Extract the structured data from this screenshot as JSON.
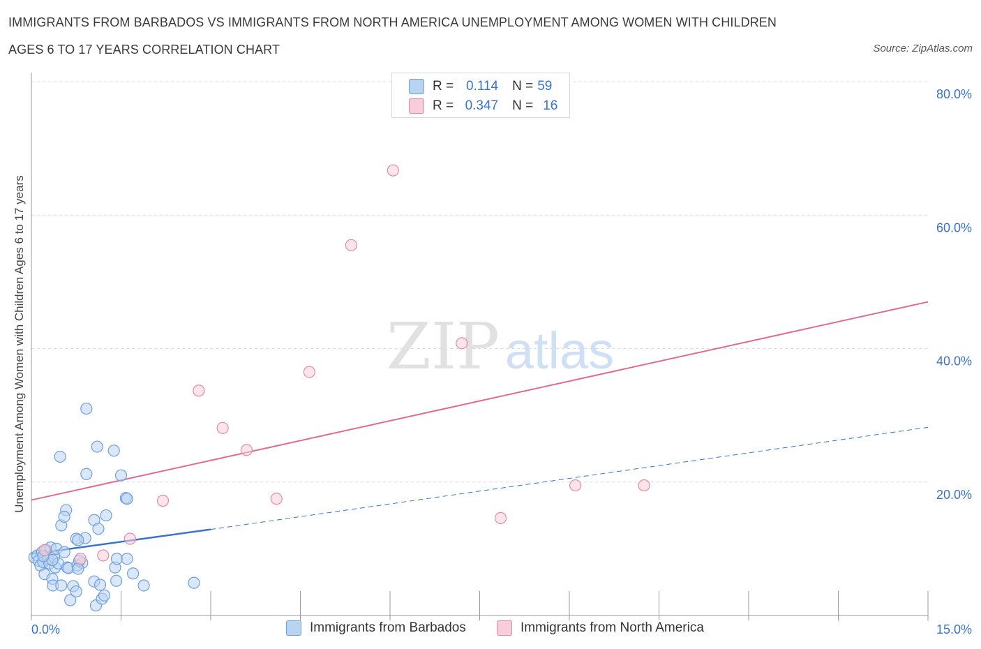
{
  "header": {
    "title_line1": "IMMIGRANTS FROM BARBADOS VS IMMIGRANTS FROM NORTH AMERICA UNEMPLOYMENT AMONG WOMEN WITH CHILDREN",
    "title_line2": "AGES 6 TO 17 YEARS CORRELATION CHART",
    "source": "Source: ZipAtlas.com"
  },
  "legend": {
    "r_label": "R =",
    "n_label": "N =",
    "series1": {
      "r": "0.114",
      "n": "59"
    },
    "series2": {
      "r": "0.347",
      "n": "16"
    }
  },
  "bottom_legend": {
    "series1": "Immigrants from Barbados",
    "series2": "Immigrants from North America"
  },
  "watermark": {
    "zip": "ZIP",
    "atlas": "atlas"
  },
  "chart_data": {
    "type": "scatter",
    "title": "IMMIGRANTS FROM BARBADOS VS IMMIGRANTS FROM NORTH AMERICA UNEMPLOYMENT AMONG WOMEN WITH CHILDREN AGES 6 TO 17 YEARS CORRELATION CHART",
    "xlabel": "",
    "ylabel": "Unemployment Among Women with Children Ages 6 to 17 years",
    "xlim": [
      0,
      15
    ],
    "ylim": [
      0,
      80
    ],
    "x_tick_labels": [
      {
        "value": 0,
        "label": "0.0%"
      },
      {
        "value": 15,
        "label": "15.0%"
      }
    ],
    "y_tick_labels": [
      {
        "value": 20,
        "label": "20.0%"
      },
      {
        "value": 40,
        "label": "40.0%"
      },
      {
        "value": 60,
        "label": "60.0%"
      },
      {
        "value": 80,
        "label": "80.0%"
      }
    ],
    "colors": {
      "series1_fill": "#b9d3f3",
      "series1_stroke": "#6f9fdb",
      "series1_line": "#3a73c9",
      "series2_fill": "#f7cdd9",
      "series2_stroke": "#e58aa6",
      "series2_line": "#e06b92"
    },
    "series": [
      {
        "name": "Immigrants from Barbados",
        "R": 0.114,
        "N": 59,
        "trend": {
          "x0": 0,
          "y0": 9.2,
          "x1": 3.0,
          "y1": 12.9,
          "dashed_to_x": 15,
          "dashed_to_y": 28.2
        },
        "points": [
          [
            0.05,
            8.7
          ],
          [
            0.1,
            9.0
          ],
          [
            0.12,
            8.2
          ],
          [
            0.15,
            7.5
          ],
          [
            0.18,
            9.5
          ],
          [
            0.2,
            8.0
          ],
          [
            0.22,
            6.2
          ],
          [
            0.25,
            9.8
          ],
          [
            0.28,
            8.5
          ],
          [
            0.3,
            7.8
          ],
          [
            0.32,
            10.2
          ],
          [
            0.35,
            5.5
          ],
          [
            0.36,
            4.5
          ],
          [
            0.38,
            8.8
          ],
          [
            0.4,
            7.2
          ],
          [
            0.42,
            10.0
          ],
          [
            0.45,
            7.8
          ],
          [
            0.35,
            8.3
          ],
          [
            0.2,
            8.9
          ],
          [
            0.5,
            4.5
          ],
          [
            0.55,
            9.5
          ],
          [
            0.58,
            15.8
          ],
          [
            0.6,
            7.2
          ],
          [
            0.65,
            2.3
          ],
          [
            0.7,
            4.4
          ],
          [
            0.75,
            3.6
          ],
          [
            0.75,
            11.5
          ],
          [
            0.62,
            7.1
          ],
          [
            0.5,
            13.5
          ],
          [
            0.55,
            14.8
          ],
          [
            0.48,
            23.8
          ],
          [
            0.77,
            7.5
          ],
          [
            0.85,
            7.9
          ],
          [
            0.9,
            11.6
          ],
          [
            0.92,
            21.2
          ],
          [
            0.8,
            8.2
          ],
          [
            0.78,
            11.3
          ],
          [
            0.78,
            7.0
          ],
          [
            0.92,
            31.0
          ],
          [
            1.05,
            14.3
          ],
          [
            1.05,
            5.1
          ],
          [
            1.08,
            1.5
          ],
          [
            1.1,
            25.3
          ],
          [
            1.12,
            13.0
          ],
          [
            1.15,
            4.6
          ],
          [
            1.18,
            2.5
          ],
          [
            1.22,
            3.0
          ],
          [
            1.25,
            15.0
          ],
          [
            1.38,
            24.7
          ],
          [
            1.4,
            7.2
          ],
          [
            1.42,
            5.2
          ],
          [
            1.43,
            8.5
          ],
          [
            1.5,
            21.0
          ],
          [
            1.58,
            17.6
          ],
          [
            1.6,
            17.5
          ],
          [
            1.7,
            6.3
          ],
          [
            1.88,
            4.5
          ],
          [
            2.72,
            4.9
          ],
          [
            1.6,
            8.5
          ]
        ]
      },
      {
        "name": "Immigrants from North America",
        "R": 0.347,
        "N": 16,
        "trend": {
          "x0": 0,
          "y0": 17.3,
          "x1": 15,
          "y1": 47.0
        },
        "points": [
          [
            0.22,
            9.8
          ],
          [
            0.82,
            8.5
          ],
          [
            1.2,
            9.0
          ],
          [
            1.65,
            11.5
          ],
          [
            2.2,
            17.2
          ],
          [
            2.8,
            33.7
          ],
          [
            3.2,
            28.1
          ],
          [
            3.6,
            24.8
          ],
          [
            4.1,
            17.5
          ],
          [
            4.65,
            36.5
          ],
          [
            5.35,
            55.5
          ],
          [
            6.05,
            66.7
          ],
          [
            7.2,
            40.8
          ],
          [
            7.85,
            14.6
          ],
          [
            9.1,
            19.5
          ],
          [
            10.25,
            19.5
          ]
        ]
      }
    ]
  }
}
